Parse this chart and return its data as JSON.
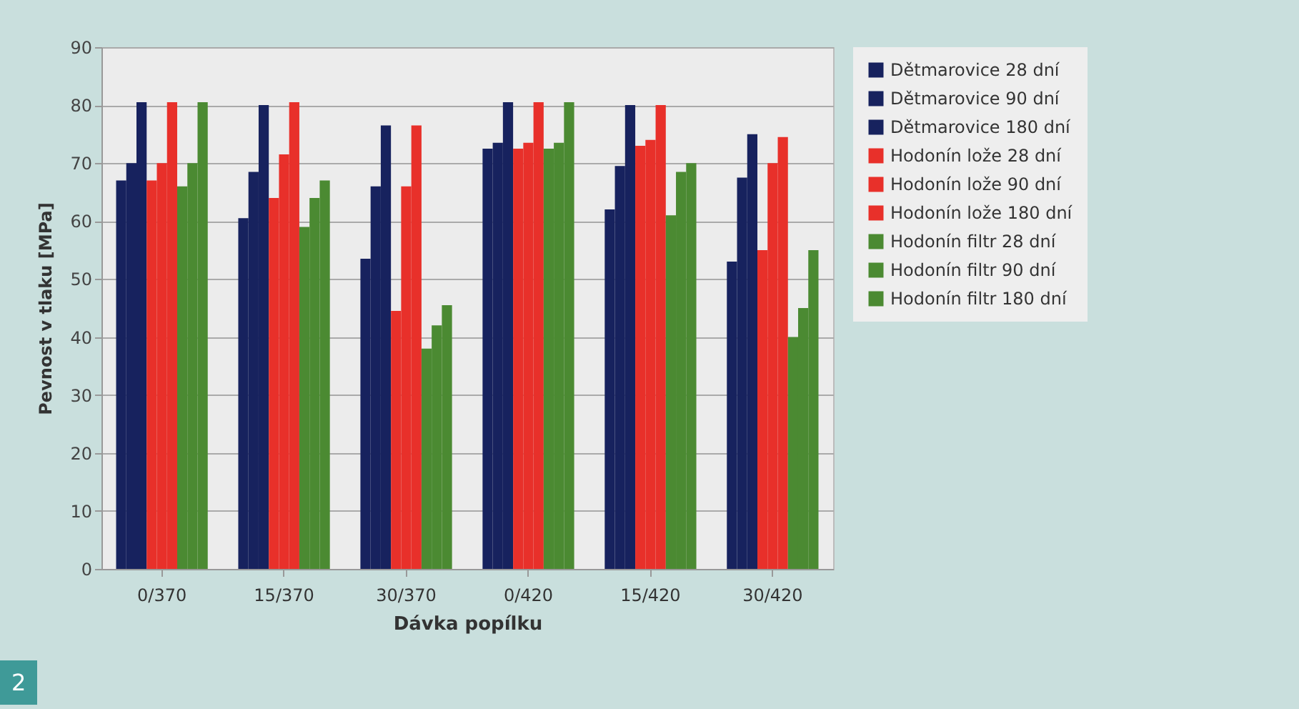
{
  "chart_data": {
    "type": "bar",
    "xlabel": "Dávka popílku",
    "ylabel": "Pevnost v tlaku [MPa]",
    "categories": [
      "0/370",
      "15/370",
      "30/370",
      "0/420",
      "15/420",
      "30/420"
    ],
    "series": [
      {
        "name": "Dětmarovice 28 dní",
        "color": "#17225e",
        "values": [
          67,
          60.5,
          53.5,
          72.5,
          62,
          53
        ]
      },
      {
        "name": "Dětmarovice 90 dní",
        "color": "#17225e",
        "values": [
          70,
          68.5,
          66,
          73.5,
          69.5,
          67.5
        ]
      },
      {
        "name": "Dětmarovice 180 dní",
        "color": "#17225e",
        "values": [
          80.5,
          80,
          76.5,
          80.5,
          80,
          75
        ]
      },
      {
        "name": "Hodonín lože 28 dní",
        "color": "#e8302a",
        "values": [
          67,
          64,
          44.5,
          72.5,
          73,
          55
        ]
      },
      {
        "name": "Hodonín lože 90 dní",
        "color": "#e8302a",
        "values": [
          70,
          71.5,
          66,
          73.5,
          74,
          70
        ]
      },
      {
        "name": "Hodonín lože 180 dní",
        "color": "#e8302a",
        "values": [
          80.5,
          80.5,
          76.5,
          80.5,
          80,
          74.5
        ]
      },
      {
        "name": "Hodonín filtr 28 dní",
        "color": "#4b8a32",
        "values": [
          66,
          59,
          38,
          72.5,
          61,
          40
        ]
      },
      {
        "name": "Hodonín filtr 90 dní",
        "color": "#4b8a32",
        "values": [
          70,
          64,
          42,
          73.5,
          68.5,
          45
        ]
      },
      {
        "name": "Hodonín filtr 180 dní",
        "color": "#4b8a32",
        "values": [
          80.5,
          67,
          45.5,
          80.5,
          70,
          55
        ]
      }
    ],
    "ylim": [
      0,
      90
    ],
    "yticks": [
      0,
      10,
      20,
      30,
      40,
      50,
      60,
      70,
      80,
      90
    ],
    "grid": "y",
    "legend": "right",
    "annotations": [
      "2"
    ]
  }
}
